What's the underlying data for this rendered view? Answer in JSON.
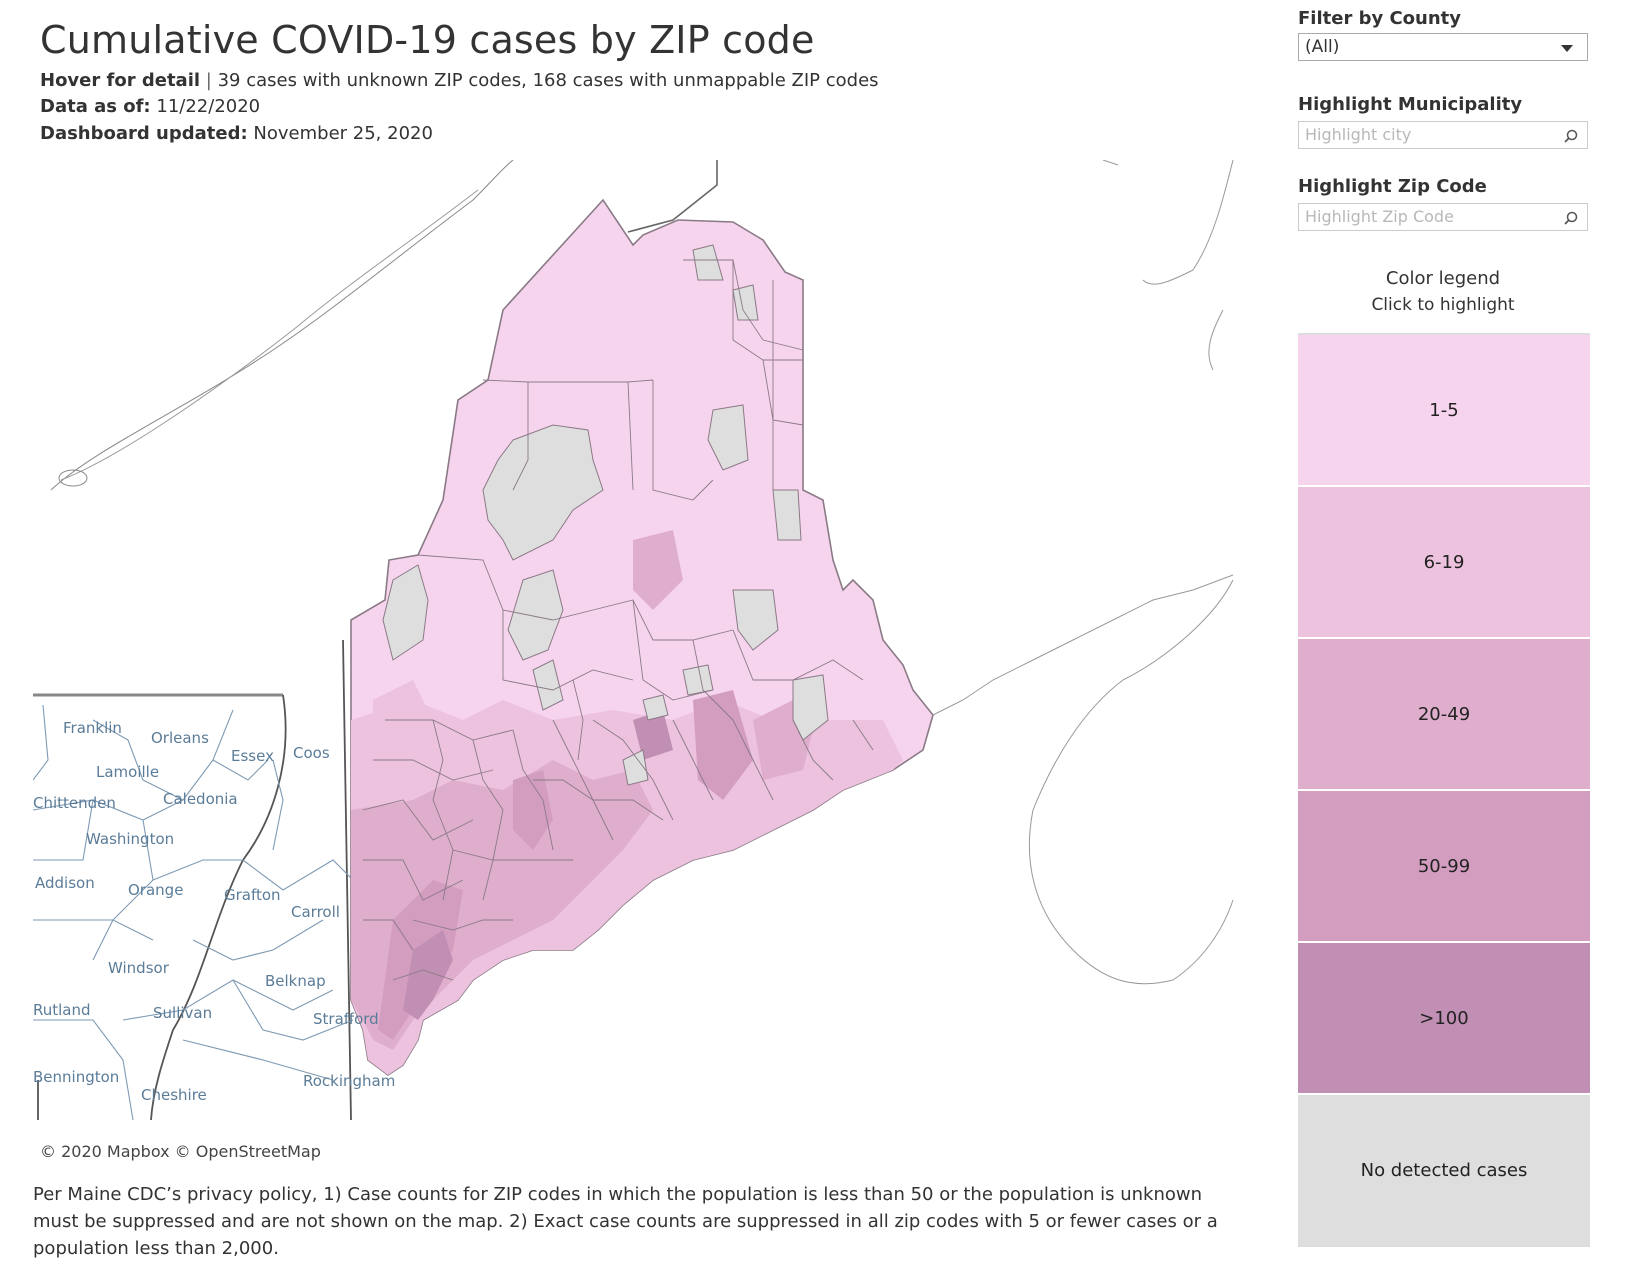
{
  "header": {
    "title": "Cumulative COVID-19 cases by ZIP code",
    "hover_label": "Hover for detail",
    "unknown_count": "39",
    "unknown_text": " cases with unknown ZIP codes, ",
    "unmappable_count": "168",
    "unmappable_text": " cases with unmappable ZIP codes",
    "data_as_of_label": "Data as of:",
    "data_as_of": "11/22/2020",
    "updated_label": "Dashboard updated:",
    "updated": "November 25, 2020"
  },
  "filters": {
    "county_label": "Filter by County",
    "county_value": "(All)",
    "municipality_label": "Highlight Municipality",
    "municipality_placeholder": "Highlight city",
    "zip_label": "Highlight Zip Code",
    "zip_placeholder": "Highlight Zip Code"
  },
  "legend": {
    "title": "Color legend",
    "subtitle": "Click to highlight",
    "items": [
      {
        "label": "1-5",
        "color": "#f7d4ee"
      },
      {
        "label": "6-19",
        "color": "#ecc2de"
      },
      {
        "label": "20-49",
        "color": "#e0aecd"
      },
      {
        "label": "50-99",
        "color": "#d39dbf"
      },
      {
        "label": ">100",
        "color": "#c28fb4"
      },
      {
        "label": "No detected cases",
        "color": "#dedede"
      }
    ]
  },
  "map": {
    "attribution": "© 2020 Mapbox  © OpenStreetMap",
    "county_labels": [
      "Franklin",
      "Orleans",
      "Lamoille",
      "Essex",
      "Coos",
      "Chittenden",
      "Caledonia",
      "Washington",
      "Addison",
      "Orange",
      "Grafton",
      "Carroll",
      "Windsor",
      "Belknap",
      "Sullivan",
      "Strafford",
      "Rutland",
      "Bennington",
      "Cheshire",
      "Rockingham"
    ]
  },
  "footnote": "Per Maine CDC’s privacy policy, 1) Case counts for ZIP codes in which the population is less than 50 or the population is unknown must be suppressed and are not shown on the map. 2) Exact case counts are suppressed in all zip codes with 5 or fewer cases or a population less than 2,000."
}
